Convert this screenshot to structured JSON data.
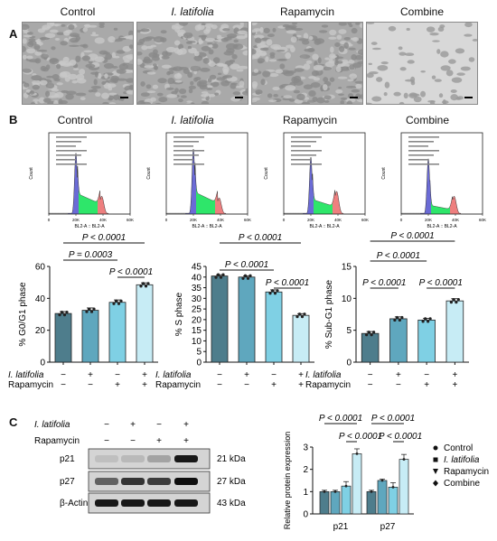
{
  "panel_letters": {
    "a": "A",
    "b": "B",
    "c": "C"
  },
  "groups": [
    "Control",
    "I. latifolia",
    "Rapamycin",
    "Combine"
  ],
  "flow_axis": {
    "xlabel": "BL2-A :: BL2-A",
    "ylabel": "Count",
    "xticks": [
      "0",
      "20K",
      "40K",
      "60K"
    ]
  },
  "matrix": {
    "row1": "I. latifolia",
    "row2": "Rapamycin",
    "row1_vals": [
      "−",
      "+",
      "−",
      "+"
    ],
    "row2_vals": [
      "−",
      "−",
      "+",
      "+"
    ]
  },
  "chart_data": [
    {
      "type": "bar",
      "ylabel": "% G0/G1 phase",
      "categories": [
        "Control",
        "I. latifolia",
        "Rapamycin",
        "Combine"
      ],
      "values": [
        30.5,
        32.5,
        37.5,
        48.5
      ],
      "errors": [
        1.2,
        1.5,
        1.5,
        1.2
      ],
      "ylim": [
        0,
        60
      ],
      "yticks": [
        0,
        20,
        40,
        60
      ],
      "brackets": [
        {
          "from": 0,
          "to": 3,
          "label": "P < 0.0001"
        },
        {
          "from": 0,
          "to": 2,
          "label": "P = 0.0003"
        },
        {
          "from": 2,
          "to": 3,
          "label": "P < 0.0001"
        }
      ]
    },
    {
      "type": "bar",
      "ylabel": "% S phase",
      "categories": [
        "Control",
        "I. latifolia",
        "Rapamycin",
        "Combine"
      ],
      "values": [
        40.5,
        40,
        33,
        22
      ],
      "errors": [
        0.6,
        0.6,
        1,
        0.8
      ],
      "ylim": [
        0,
        45
      ],
      "yticks": [
        0,
        5,
        10,
        15,
        20,
        25,
        30,
        35,
        40,
        45
      ],
      "brackets": [
        {
          "from": 0,
          "to": 3,
          "label": "P < 0.0001"
        },
        {
          "from": 0,
          "to": 2,
          "label": "P < 0.0001"
        },
        {
          "from": 2,
          "to": 3,
          "label": "P < 0.0001"
        }
      ]
    },
    {
      "type": "bar",
      "ylabel": "% Sub-G1 phase",
      "categories": [
        "Control",
        "I. latifolia",
        "Rapamycin",
        "Combine"
      ],
      "values": [
        4.5,
        6.8,
        6.6,
        9.6
      ],
      "errors": [
        0.3,
        0.3,
        0.25,
        0.35
      ],
      "ylim": [
        0,
        15
      ],
      "yticks": [
        0,
        5,
        10,
        15
      ],
      "brackets": [
        {
          "from": 0,
          "to": 3,
          "label": "P < 0.0001"
        },
        {
          "from": 0,
          "to": 2,
          "label": "P < 0.0001"
        },
        {
          "from": 0,
          "to": 1,
          "label": "P < 0.0001"
        },
        {
          "from": 2,
          "to": 3,
          "label": "P < 0.0001"
        }
      ]
    },
    {
      "type": "bar",
      "ylabel": "Relative protein expression",
      "categories": [
        "p21",
        "p27"
      ],
      "series": [
        {
          "name": "Control",
          "values": [
            1.0,
            1.0
          ]
        },
        {
          "name": "I. latifolia",
          "values": [
            1.0,
            1.5
          ]
        },
        {
          "name": "Rapamycin",
          "values": [
            1.25,
            1.2
          ]
        },
        {
          "name": "Combine",
          "values": [
            2.7,
            2.45
          ]
        }
      ],
      "ylim": [
        0,
        3
      ],
      "yticks": [
        0,
        1,
        2,
        3
      ],
      "brackets": [
        {
          "label": "P < 0.0001"
        },
        {
          "label": "P < 0.0001"
        },
        {
          "label": "P < 0.0001"
        },
        {
          "label": "P < 0.0001"
        }
      ]
    }
  ],
  "western": {
    "header_rows": [
      "I. latifolia",
      "Rapamycin"
    ],
    "header_vals1": [
      "−",
      "+",
      "−",
      "+"
    ],
    "header_vals2": [
      "−",
      "−",
      "+",
      "+"
    ],
    "bands": [
      {
        "name": "p21",
        "kda": "21 kDa",
        "intensity": [
          0.05,
          0.08,
          0.2,
          0.95
        ]
      },
      {
        "name": "p27",
        "kda": "27 kDa",
        "intensity": [
          0.55,
          0.8,
          0.75,
          1.0
        ]
      },
      {
        "name": "β-Actin",
        "kda": "43 kDa",
        "intensity": [
          0.95,
          0.95,
          0.95,
          0.95
        ]
      }
    ]
  },
  "colors": {
    "c0": "#4e7d8c",
    "c1": "#5fa7be",
    "c2": "#7fd0e4",
    "c3": "#c7ecf5",
    "green": "#2ee66a",
    "blue": "#6b6bd6",
    "red": "#ee7f7f"
  }
}
